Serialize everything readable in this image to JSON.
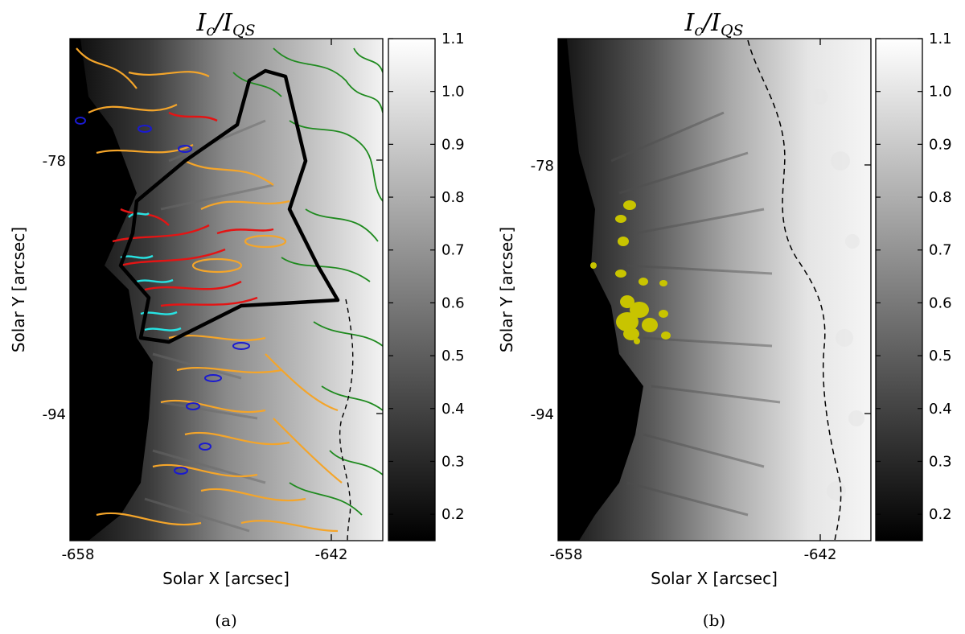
{
  "figure": {
    "panels": [
      {
        "id": "a",
        "title": "I_c/I_QS",
        "xlabel": "Solar X [arcsec]",
        "ylabel": "Solar Y [arcsec]",
        "xticks": [
          "-658",
          "-642"
        ],
        "yticks": [
          "-78",
          "-94"
        ],
        "colorbar_ticks": [
          "1.1",
          "1.0",
          "0.9",
          "0.8",
          "0.7",
          "0.6",
          "0.5",
          "0.4",
          "0.3",
          "0.2"
        ],
        "caption": "(a)",
        "contour_colors": {
          "orange": "#f4a52a",
          "green": "#1f8a1f",
          "red": "#e41414",
          "blue": "#1a1ad0",
          "cyan": "#27e3e3",
          "region": "#000000"
        }
      },
      {
        "id": "b",
        "title": "I_c/I_QS",
        "xlabel": "Solar X [arcsec]",
        "ylabel": "Solar Y [arcsec]",
        "xticks": [
          "-658",
          "-642"
        ],
        "yticks": [
          "-78",
          "-94"
        ],
        "colorbar_ticks": [
          "1.1",
          "1.0",
          "0.9",
          "0.8",
          "0.7",
          "0.6",
          "0.5",
          "0.4",
          "0.3",
          "0.2"
        ],
        "caption": "(b)",
        "marker_color": "#c8c400"
      }
    ]
  },
  "chart_data": [
    {
      "type": "heatmap",
      "title": "I_c/I_QS",
      "xlabel": "Solar X [arcsec]",
      "ylabel": "Solar Y [arcsec]",
      "x_tick_values": [
        -658,
        -642
      ],
      "y_tick_values": [
        -78,
        -94
      ],
      "colorbar_range": [
        0.15,
        1.1
      ],
      "colormap": "gray",
      "overlays": [
        "orange contours",
        "green contours",
        "red contours",
        "blue contours",
        "cyan contours",
        "black region outline",
        "dashed boundary"
      ]
    },
    {
      "type": "heatmap",
      "title": "I_c/I_QS",
      "xlabel": "Solar X [arcsec]",
      "ylabel": "Solar Y [arcsec]",
      "x_tick_values": [
        -658,
        -642
      ],
      "y_tick_values": [
        -78,
        -94
      ],
      "colorbar_range": [
        0.15,
        1.1
      ],
      "colormap": "gray",
      "overlays": [
        "yellow markers",
        "dashed boundary"
      ]
    }
  ]
}
